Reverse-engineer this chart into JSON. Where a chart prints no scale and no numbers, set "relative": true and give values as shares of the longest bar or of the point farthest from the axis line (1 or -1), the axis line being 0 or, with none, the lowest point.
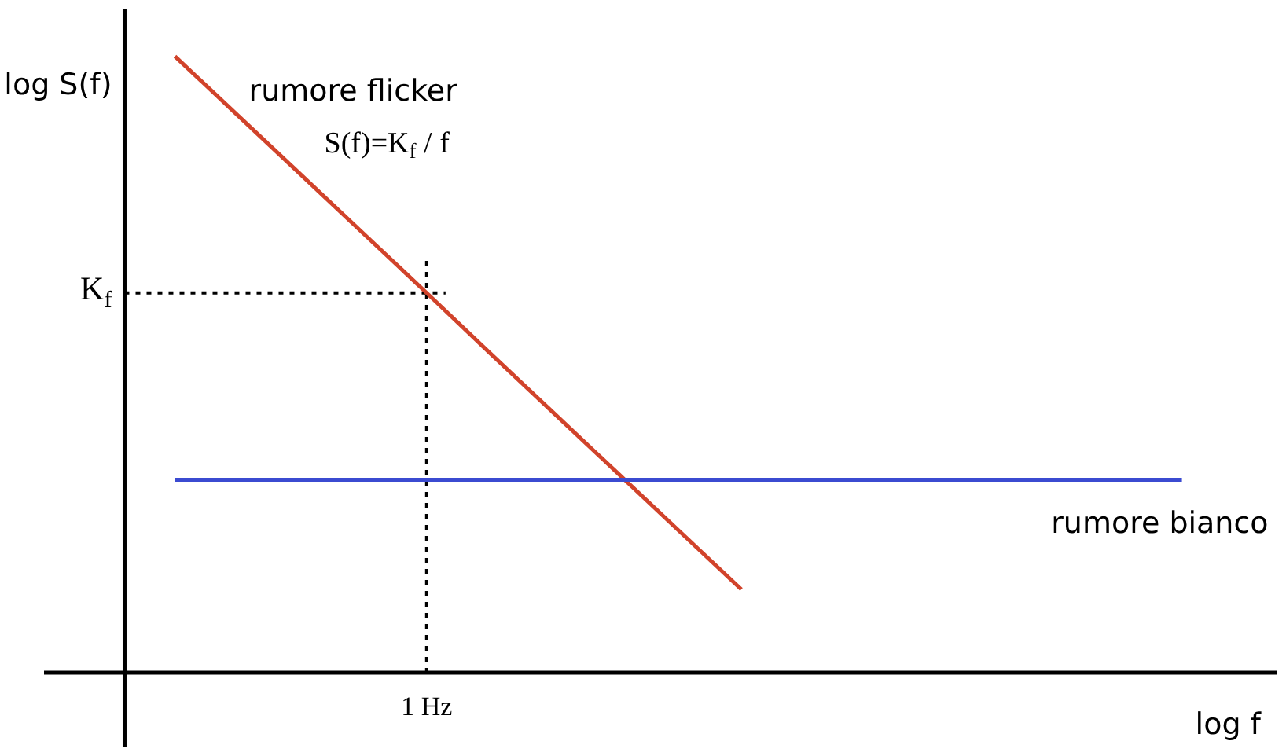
{
  "chart_data": {
    "type": "line",
    "relative": true,
    "xlabel": "log f",
    "ylabel": "log S(f)",
    "categories": [
      null,
      null,
      null,
      null,
      null,
      null,
      null,
      null,
      null,
      null,
      null,
      null,
      null,
      null,
      null,
      null,
      null
    ],
    "series": [
      {
        "name": "rumore flicker",
        "color": "#d1432b",
        "values": [
          1,
          0.904,
          0.808,
          0.712,
          0.616,
          0.519,
          0.423,
          0.327,
          0.231,
          0.135,
          null,
          null,
          null,
          null,
          null,
          null,
          null
        ]
      },
      {
        "name": "rumore bianco",
        "color": "#3b4bd1",
        "values": [
          0.313,
          0.313,
          0.313,
          0.313,
          0.313,
          0.313,
          0.313,
          0.313,
          0.313,
          0.313,
          0.313,
          0.313,
          0.313,
          0.313,
          0.313,
          0.313,
          0.313
        ]
      }
    ],
    "ref_lines": [
      {
        "axis": "y",
        "value": 0.616,
        "label": "K$_{f}$",
        "color": "#000000",
        "line_style": "dotted"
      }
    ],
    "annotations": [
      "S(f)=K$_{f}$ / f",
      "1 Hz"
    ],
    "line_style": "solid"
  }
}
